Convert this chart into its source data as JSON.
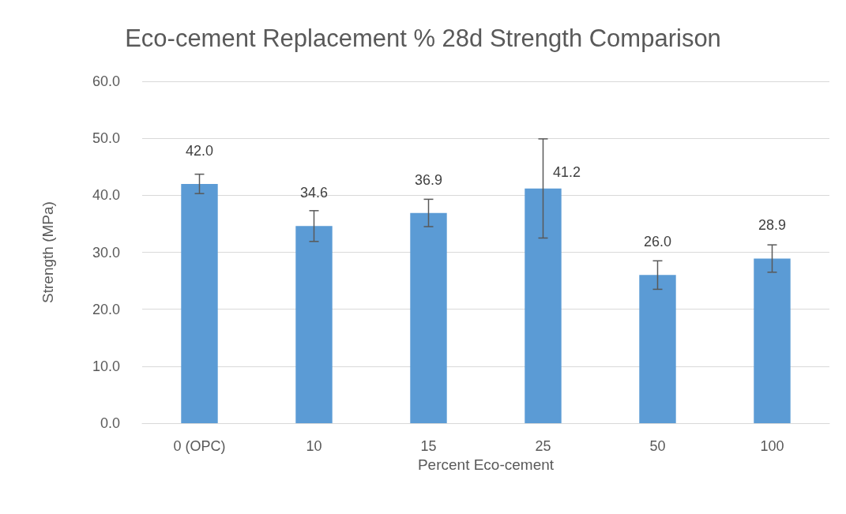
{
  "chart_data": {
    "type": "bar",
    "title": "Eco-cement Replacement % 28d Strength Comparison",
    "xlabel": "Percent Eco-cement",
    "ylabel": "Strength (MPa)",
    "categories": [
      "0 (OPC)",
      "10",
      "15",
      "25",
      "50",
      "100"
    ],
    "values": [
      42.0,
      34.6,
      36.9,
      41.2,
      26.0,
      28.9
    ],
    "value_labels": [
      "42.0",
      "34.6",
      "36.9",
      "41.2",
      "26.0",
      "28.9"
    ],
    "errors": [
      1.7,
      2.7,
      2.4,
      8.7,
      2.5,
      2.4
    ],
    "color": "#5b9bd5",
    "ylim": [
      0,
      60
    ],
    "yticks": [
      {
        "value": 0,
        "label": "0.0"
      },
      {
        "value": 10,
        "label": "10.0"
      },
      {
        "value": 20,
        "label": "20.0"
      },
      {
        "value": 30,
        "label": "30.0"
      },
      {
        "value": 40,
        "label": "40.0"
      },
      {
        "value": 50,
        "label": "50.0"
      },
      {
        "value": 60,
        "label": "60.0"
      }
    ],
    "grid": "y"
  }
}
